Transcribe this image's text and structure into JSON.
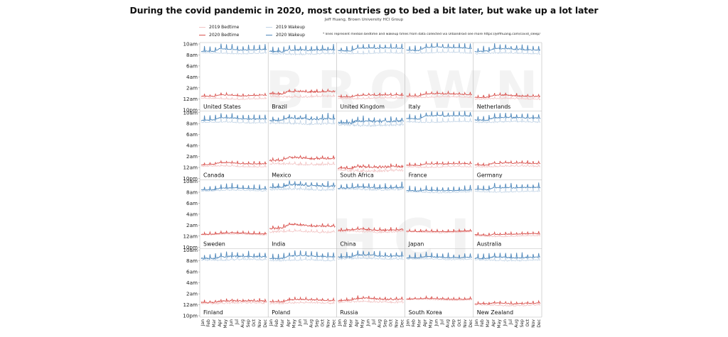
{
  "chart_data": {
    "type": "line",
    "title": "During the covid pandemic in 2020, most countries go to bed a bit later, but wake up a lot later",
    "subtitle": "Jeff Huang, Brown University HCI Group",
    "note": "* lines represent median bedtime and wakeup times from data collected via Urbandroid   see more https://jeffhuang.com/covid_sleep/",
    "legend": [
      {
        "key": "bed2019",
        "label": "2019 Bedtime",
        "color": "#f2c4c4"
      },
      {
        "key": "wake2019",
        "label": "2019 Wakeup",
        "color": "#c2d4e6"
      },
      {
        "key": "bed2020",
        "label": "2020 Bedtime",
        "color": "#d9534f"
      },
      {
        "key": "wake2020",
        "label": "2020 Wakeup",
        "color": "#4f88bb"
      }
    ],
    "y_axis": {
      "unit": "hours after 10pm",
      "ylim": [
        0,
        12
      ],
      "ticks": [
        {
          "label": "10am",
          "value": 12
        },
        {
          "label": "8am",
          "value": 10
        },
        {
          "label": "6am",
          "value": 8
        },
        {
          "label": "4am",
          "value": 6
        },
        {
          "label": "2am",
          "value": 4
        },
        {
          "label": "12am",
          "value": 2
        },
        {
          "label": "10pm",
          "value": 0
        }
      ]
    },
    "x_axis": {
      "months": [
        "Jan",
        "Feb",
        "Mar",
        "Apr",
        "May",
        "Jun",
        "Jul",
        "Aug",
        "Sep",
        "Oct",
        "Nov",
        "Dec"
      ]
    },
    "watermark": [
      "BROWN",
      "HCI"
    ],
    "countries": [
      {
        "name": "United States",
        "bed2019": 2.0,
        "bed2020": 2.4,
        "wake2019": 10.3,
        "wake2020": 10.6,
        "bedShift": 0.3,
        "wakeShift": 0.5,
        "noise": 0.15,
        "seed": 1
      },
      {
        "name": "Brazil",
        "bed2019": 2.4,
        "bed2020": 2.9,
        "wake2019": 10.2,
        "wake2020": 10.6,
        "bedShift": 0.5,
        "wakeShift": 0.4,
        "noise": 0.25,
        "seed": 2
      },
      {
        "name": "United Kingdom",
        "bed2019": 2.1,
        "bed2020": 2.4,
        "wake2019": 10.3,
        "wake2020": 10.8,
        "bedShift": 0.3,
        "wakeShift": 0.5,
        "noise": 0.15,
        "seed": 3
      },
      {
        "name": "Italy",
        "bed2019": 2.3,
        "bed2020": 2.6,
        "wake2019": 10.4,
        "wake2020": 10.9,
        "bedShift": 0.3,
        "wakeShift": 0.5,
        "noise": 0.15,
        "seed": 4
      },
      {
        "name": "Netherlands",
        "bed2019": 2.0,
        "bed2020": 2.3,
        "wake2019": 10.3,
        "wake2020": 10.7,
        "bedShift": 0.3,
        "wakeShift": 0.4,
        "noise": 0.2,
        "seed": 5
      },
      {
        "name": "Canada",
        "bed2019": 2.2,
        "bed2020": 2.5,
        "wake2019": 10.2,
        "wake2020": 10.6,
        "bedShift": 0.3,
        "wakeShift": 0.4,
        "noise": 0.15,
        "seed": 6
      },
      {
        "name": "Mexico",
        "bed2019": 2.6,
        "bed2020": 3.2,
        "wake2019": 10.0,
        "wake2020": 10.5,
        "bedShift": 0.6,
        "wakeShift": 0.5,
        "noise": 0.3,
        "seed": 7
      },
      {
        "name": "South Africa",
        "bed2019": 1.4,
        "bed2020": 1.8,
        "wake2019": 9.7,
        "wake2020": 10.1,
        "bedShift": 0.4,
        "wakeShift": 0.4,
        "noise": 0.35,
        "seed": 8
      },
      {
        "name": "France",
        "bed2019": 2.1,
        "bed2020": 2.4,
        "wake2019": 10.3,
        "wake2020": 10.9,
        "bedShift": 0.3,
        "wakeShift": 0.6,
        "noise": 0.15,
        "seed": 9
      },
      {
        "name": "Germany",
        "bed2019": 2.2,
        "bed2020": 2.5,
        "wake2019": 10.3,
        "wake2020": 10.7,
        "bedShift": 0.3,
        "wakeShift": 0.4,
        "noise": 0.2,
        "seed": 10
      },
      {
        "name": "Sweden",
        "bed2019": 2.3,
        "bed2020": 2.4,
        "wake2019": 10.3,
        "wake2020": 10.5,
        "bedShift": 0.1,
        "wakeShift": 0.2,
        "noise": 0.15,
        "seed": 11
      },
      {
        "name": "India",
        "bed2019": 2.8,
        "bed2020": 3.4,
        "wake2019": 10.5,
        "wake2020": 10.9,
        "bedShift": 0.6,
        "wakeShift": 0.4,
        "noise": 0.3,
        "seed": 12
      },
      {
        "name": "China",
        "bed2019": 2.8,
        "bed2020": 3.0,
        "wake2019": 10.5,
        "wake2020": 10.7,
        "bedShift": 0.2,
        "wakeShift": 0.2,
        "noise": 0.25,
        "seed": 13
      },
      {
        "name": "Japan",
        "bed2019": 2.7,
        "bed2020": 2.8,
        "wake2019": 10.0,
        "wake2020": 10.2,
        "bedShift": 0.1,
        "wakeShift": 0.2,
        "noise": 0.15,
        "seed": 14
      },
      {
        "name": "Australia",
        "bed2019": 2.0,
        "bed2020": 2.2,
        "wake2019": 10.1,
        "wake2020": 10.5,
        "bedShift": 0.2,
        "wakeShift": 0.4,
        "noise": 0.15,
        "seed": 15
      },
      {
        "name": "Finland",
        "bed2019": 2.3,
        "bed2020": 2.5,
        "wake2019": 10.2,
        "wake2020": 10.5,
        "bedShift": 0.2,
        "wakeShift": 0.3,
        "noise": 0.25,
        "seed": 16
      },
      {
        "name": "Poland",
        "bed2019": 2.3,
        "bed2020": 2.6,
        "wake2019": 10.1,
        "wake2020": 10.5,
        "bedShift": 0.3,
        "wakeShift": 0.4,
        "noise": 0.2,
        "seed": 17
      },
      {
        "name": "Russia",
        "bed2019": 2.5,
        "bed2020": 2.8,
        "wake2019": 10.4,
        "wake2020": 10.7,
        "bedShift": 0.3,
        "wakeShift": 0.3,
        "noise": 0.25,
        "seed": 18
      },
      {
        "name": "South Korea",
        "bed2019": 2.9,
        "bed2020": 3.0,
        "wake2019": 10.3,
        "wake2020": 10.5,
        "bedShift": 0.1,
        "wakeShift": 0.2,
        "noise": 0.15,
        "seed": 19
      },
      {
        "name": "New Zealand",
        "bed2019": 1.9,
        "bed2020": 2.1,
        "wake2019": 10.1,
        "wake2020": 10.4,
        "bedShift": 0.2,
        "wakeShift": 0.3,
        "noise": 0.2,
        "seed": 20
      }
    ]
  }
}
